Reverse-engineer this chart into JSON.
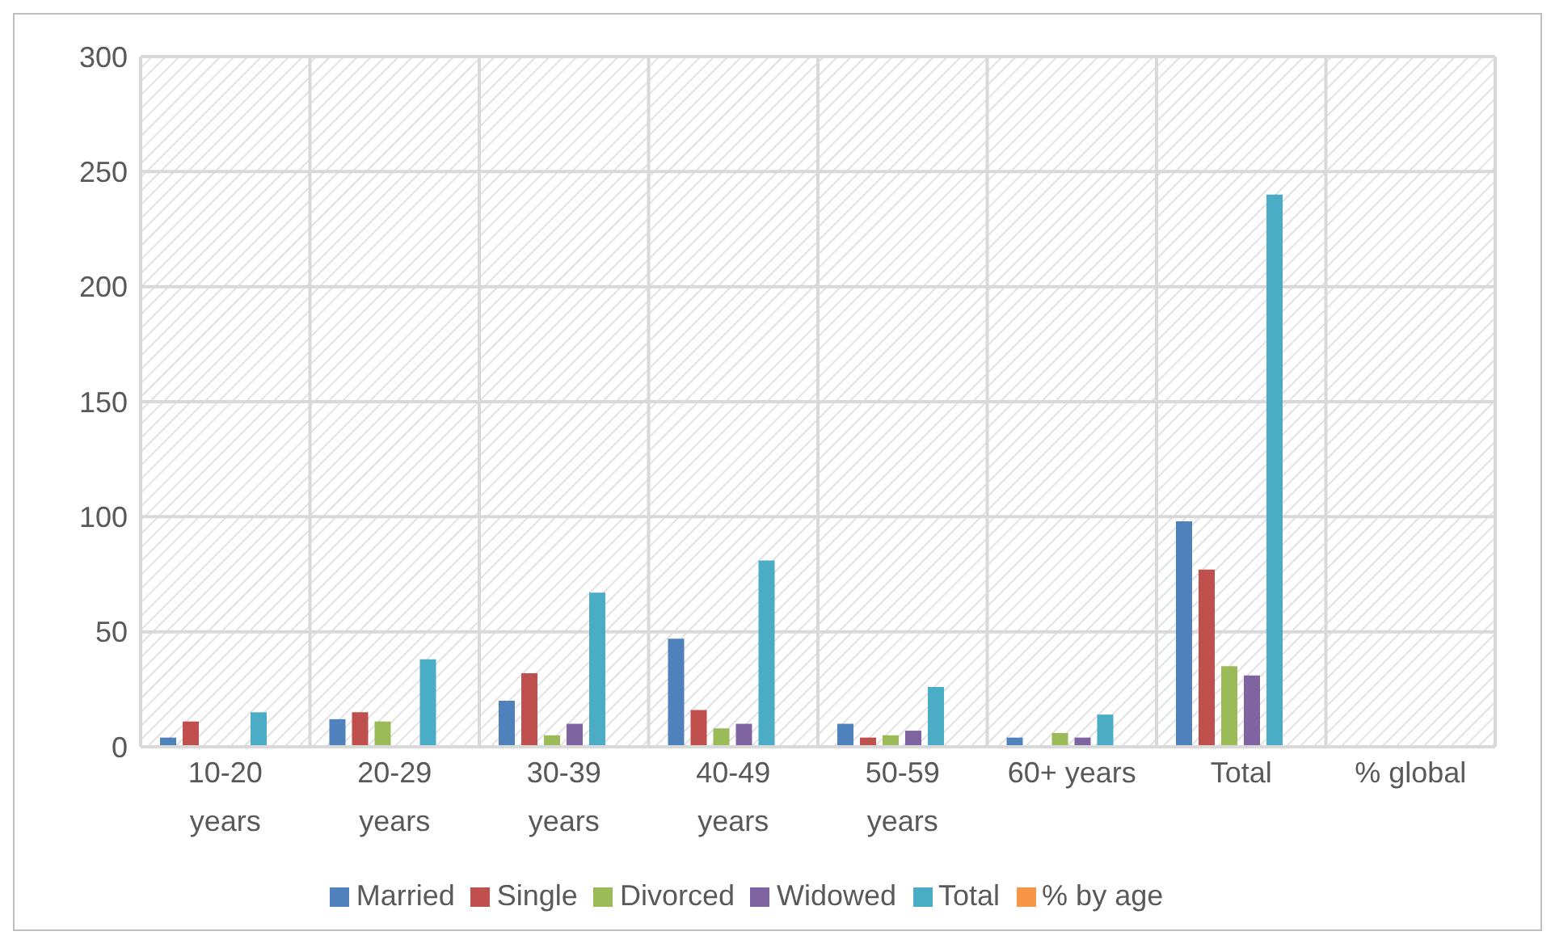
{
  "chart_data": {
    "type": "bar",
    "categories": [
      "10-20 years",
      "20-29 years",
      "30-39 years",
      "40-49 years",
      "50-59 years",
      "60+ years",
      "Total",
      "% global"
    ],
    "series": [
      {
        "name": "Married",
        "color": "#4f81bd",
        "values": [
          4,
          12,
          20,
          47,
          10,
          4,
          98,
          null
        ]
      },
      {
        "name": "Single",
        "color": "#c0504d",
        "values": [
          11,
          15,
          32,
          16,
          4,
          null,
          77,
          null
        ]
      },
      {
        "name": "Divorced",
        "color": "#9bbb59",
        "values": [
          null,
          11,
          5,
          8,
          5,
          6,
          35,
          null
        ]
      },
      {
        "name": "Widowed",
        "color": "#8064a2",
        "values": [
          null,
          null,
          10,
          10,
          7,
          4,
          31,
          null
        ]
      },
      {
        "name": "Total",
        "color": "#4bacc6",
        "values": [
          15,
          38,
          67,
          81,
          26,
          14,
          240,
          null
        ]
      },
      {
        "name": "% by age",
        "color": "#f79646",
        "values": [
          null,
          null,
          null,
          null,
          null,
          null,
          null,
          null
        ]
      }
    ],
    "ylim": [
      0,
      300
    ],
    "yticks": [
      0,
      50,
      100,
      150,
      200,
      250,
      300
    ],
    "grid": true,
    "legend": "bottom"
  }
}
